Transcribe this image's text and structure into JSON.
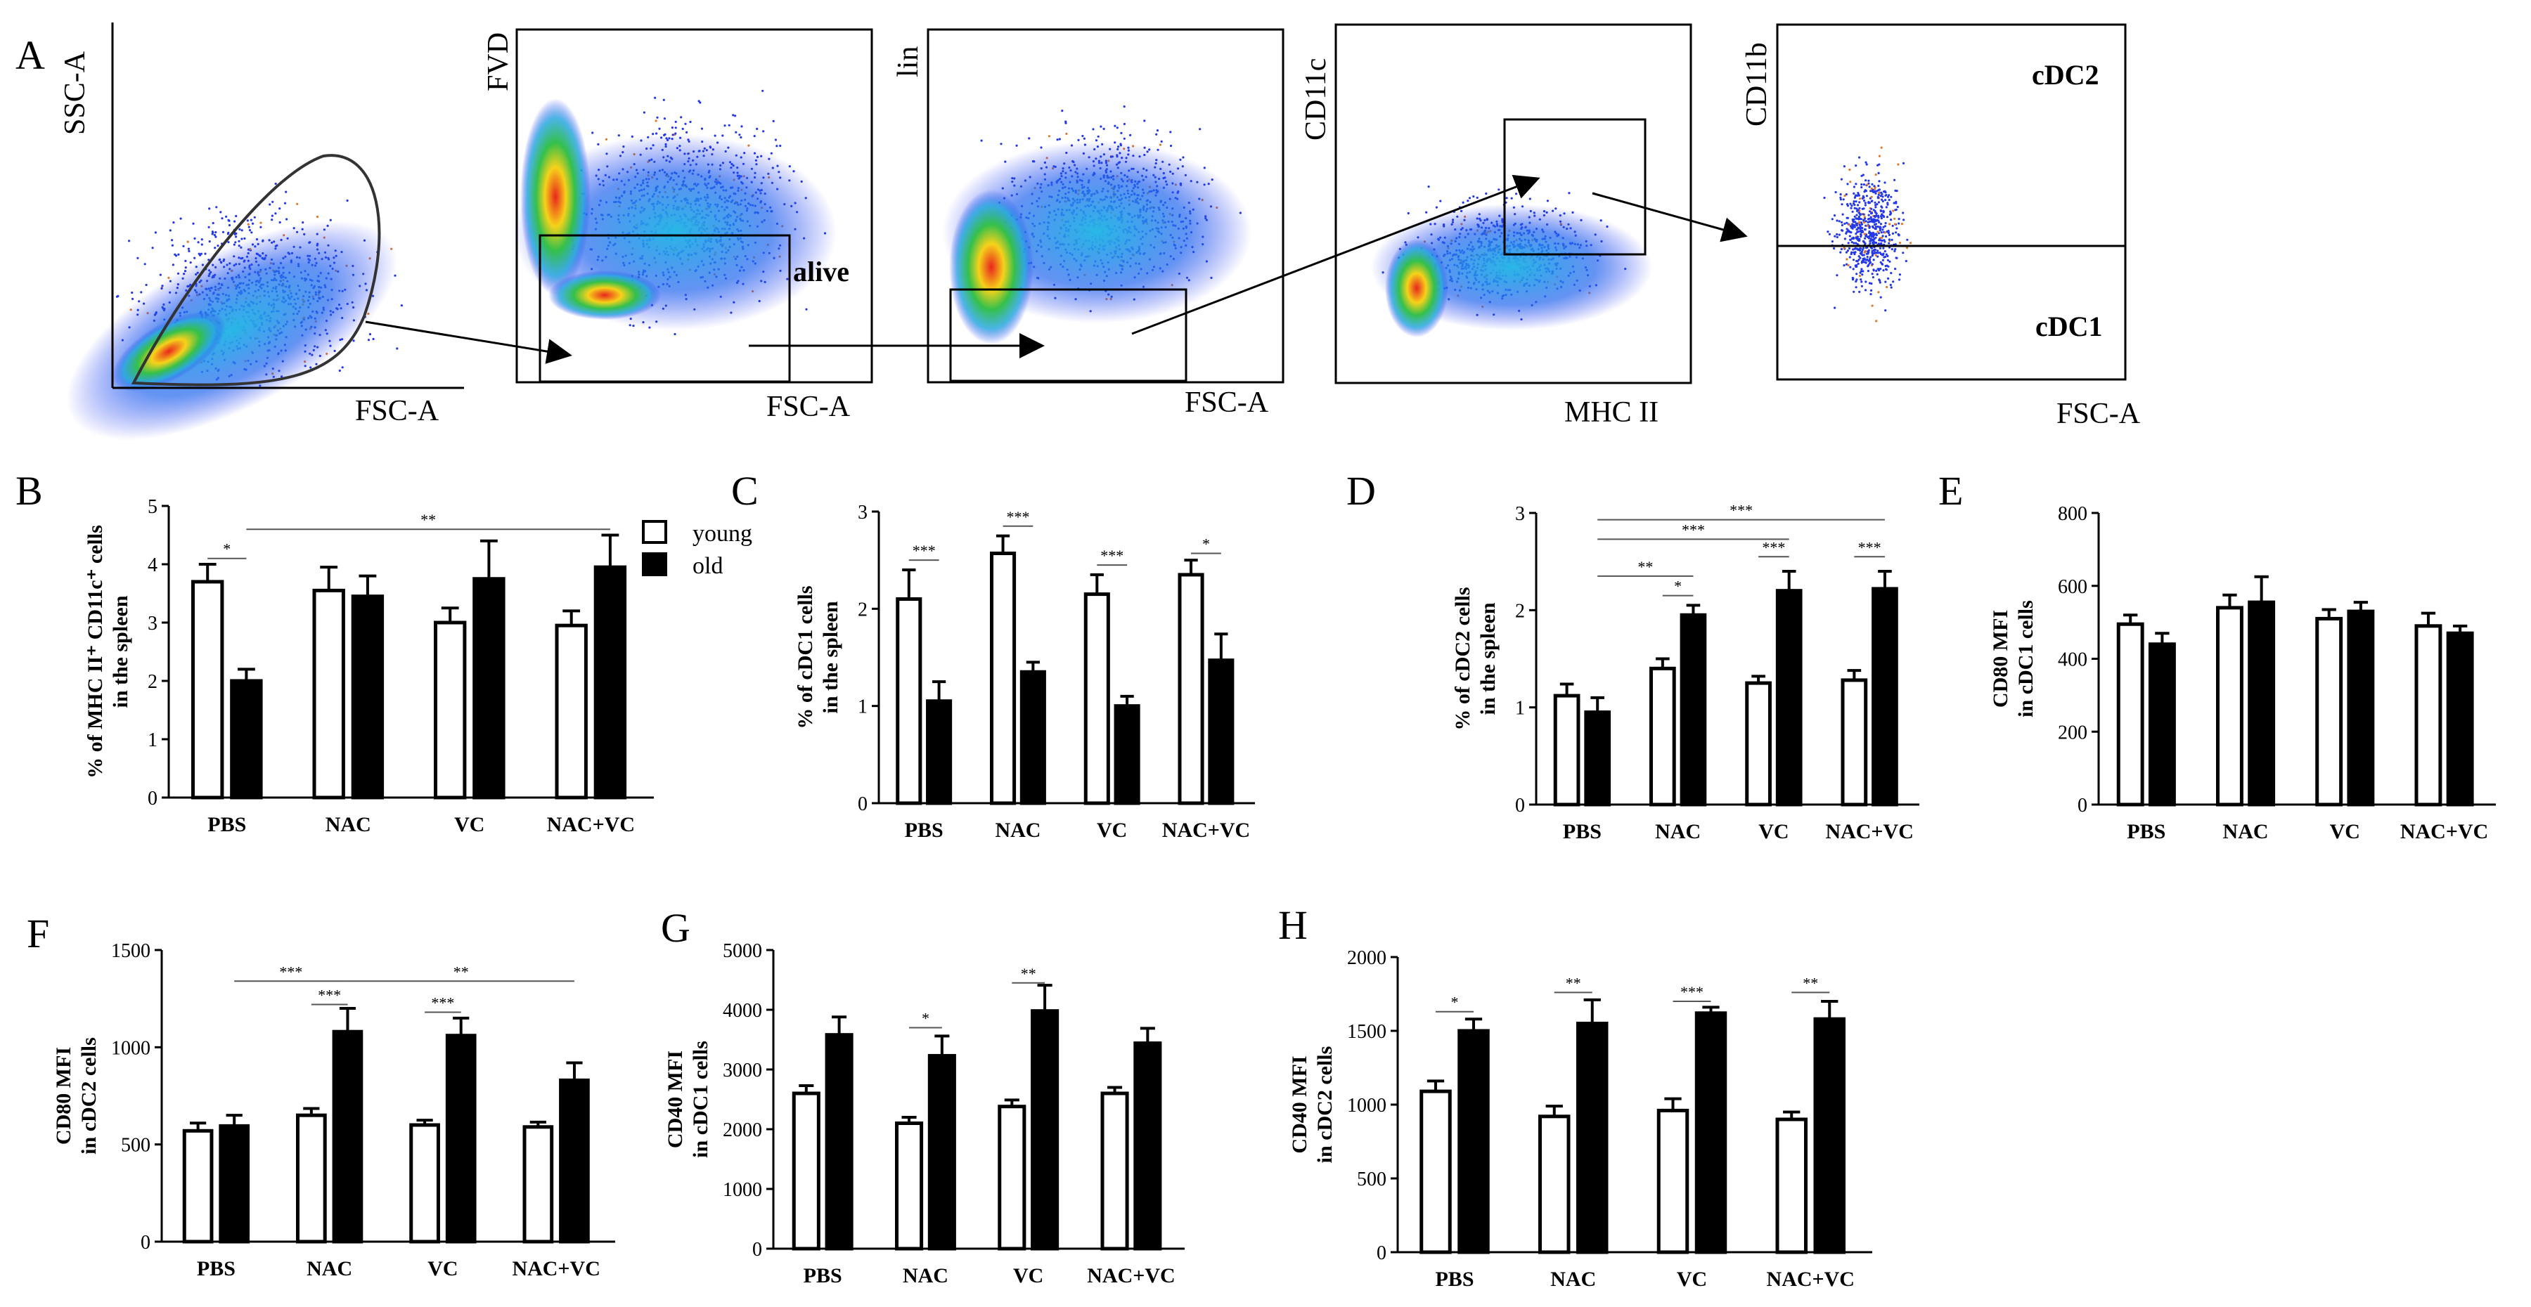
{
  "panel_A": {
    "letter": "A",
    "plots": [
      {
        "y_label": "SSC-A",
        "x_label": "FSC-A"
      },
      {
        "y_label": "FVD",
        "x_label": "FSC-A",
        "gate_label": "alive"
      },
      {
        "y_label": "lin",
        "x_label": "FSC-A"
      },
      {
        "y_label": "CD11c",
        "x_label": "MHC II"
      },
      {
        "y_label": "CD11b",
        "x_label": "FSC-A",
        "upper_label": "cDC2",
        "lower_label": "cDC1"
      }
    ]
  },
  "legend": {
    "young": "young",
    "old": "old"
  },
  "colors": {
    "young": "#ffffff",
    "old": "#000000",
    "gate": "#000000",
    "sig_line": "#555555"
  },
  "chart_data": [
    {
      "id": "B",
      "type": "bar",
      "letter": "B",
      "categories": [
        "PBS",
        "NAC",
        "VC",
        "NAC+VC"
      ],
      "series": [
        {
          "name": "young",
          "values": [
            3.7,
            3.55,
            3.0,
            2.95
          ],
          "errors": [
            0.3,
            0.4,
            0.25,
            0.25
          ]
        },
        {
          "name": "old",
          "values": [
            2.0,
            3.45,
            3.75,
            3.95
          ],
          "errors": [
            0.2,
            0.35,
            0.65,
            0.55
          ]
        }
      ],
      "ylim": [
        0,
        5
      ],
      "yticks": [
        "0",
        "1",
        "2",
        "3",
        "4",
        "5"
      ],
      "ylabel_line1": "% of MHC II⁺ CD11c⁺ cells",
      "ylabel_line2": "in the spleen",
      "significance": [
        {
          "from": "PBS:young",
          "to": "PBS:old",
          "y": 4.1,
          "label": "*"
        },
        {
          "from": "PBS:old",
          "to": "NAC+VC:old",
          "y": 4.6,
          "label": "**"
        }
      ]
    },
    {
      "id": "C",
      "type": "bar",
      "letter": "C",
      "categories": [
        "PBS",
        "NAC",
        "VC",
        "NAC+VC"
      ],
      "series": [
        {
          "name": "young",
          "values": [
            2.1,
            2.57,
            2.15,
            2.35
          ],
          "errors": [
            0.3,
            0.18,
            0.2,
            0.15
          ]
        },
        {
          "name": "old",
          "values": [
            1.05,
            1.35,
            1.0,
            1.47
          ],
          "errors": [
            0.2,
            0.1,
            0.1,
            0.27
          ]
        }
      ],
      "ylim": [
        0,
        3
      ],
      "yticks": [
        "0",
        "1",
        "2",
        "3"
      ],
      "ylabel_line1": "% of cDC1 cells",
      "ylabel_line2": "in the spleen",
      "significance": [
        {
          "from": "PBS:young",
          "to": "PBS:old",
          "y": 2.5,
          "label": "***"
        },
        {
          "from": "NAC:young",
          "to": "NAC:old",
          "y": 2.85,
          "label": "***"
        },
        {
          "from": "VC:young",
          "to": "VC:old",
          "y": 2.45,
          "label": "***"
        },
        {
          "from": "NAC+VC:young",
          "to": "NAC+VC:old",
          "y": 2.57,
          "label": "*"
        }
      ]
    },
    {
      "id": "D",
      "type": "bar",
      "letter": "D",
      "categories": [
        "PBS",
        "NAC",
        "VC",
        "NAC+VC"
      ],
      "series": [
        {
          "name": "young",
          "values": [
            1.12,
            1.4,
            1.25,
            1.28
          ],
          "errors": [
            0.12,
            0.1,
            0.07,
            0.1
          ]
        },
        {
          "name": "old",
          "values": [
            0.95,
            1.95,
            2.2,
            2.22
          ],
          "errors": [
            0.15,
            0.1,
            0.2,
            0.18
          ]
        }
      ],
      "ylim": [
        0,
        3
      ],
      "yticks": [
        "0",
        "1",
        "2",
        "3"
      ],
      "ylabel_line1": "% of cDC2 cells",
      "ylabel_line2": "in the spleen",
      "significance": [
        {
          "from": "PBS:old",
          "to": "NAC+VC:old",
          "y": 2.93,
          "label": "***"
        },
        {
          "from": "PBS:old",
          "to": "VC:old",
          "y": 2.73,
          "label": "***"
        },
        {
          "from": "PBS:old",
          "to": "NAC:old",
          "y": 2.35,
          "label": "**"
        },
        {
          "from": "NAC:young",
          "to": "NAC:old",
          "y": 2.15,
          "label": "*"
        },
        {
          "from": "VC:young",
          "to": "VC:old",
          "y": 2.55,
          "label": "***"
        },
        {
          "from": "NAC+VC:young",
          "to": "NAC+VC:old",
          "y": 2.55,
          "label": "***"
        }
      ]
    },
    {
      "id": "E",
      "type": "bar",
      "letter": "E",
      "categories": [
        "PBS",
        "NAC",
        "VC",
        "NAC+VC"
      ],
      "series": [
        {
          "name": "young",
          "values": [
            495,
            540,
            510,
            490
          ],
          "errors": [
            25,
            35,
            25,
            35
          ]
        },
        {
          "name": "old",
          "values": [
            440,
            555,
            530,
            470
          ],
          "errors": [
            30,
            70,
            25,
            20
          ]
        }
      ],
      "ylim": [
        0,
        800
      ],
      "yticks": [
        "0",
        "200",
        "400",
        "600",
        "800"
      ],
      "ylabel_line1": "CD80 MFI",
      "ylabel_line2": "in cDC1 cells",
      "significance": []
    },
    {
      "id": "F",
      "type": "bar",
      "letter": "F",
      "categories": [
        "PBS",
        "NAC",
        "VC",
        "NAC+VC"
      ],
      "series": [
        {
          "name": "young",
          "values": [
            570,
            650,
            600,
            590
          ],
          "errors": [
            40,
            35,
            25,
            25
          ]
        },
        {
          "name": "old",
          "values": [
            595,
            1080,
            1060,
            830
          ],
          "errors": [
            55,
            120,
            90,
            90
          ]
        }
      ],
      "ylim": [
        0,
        1500
      ],
      "yticks": [
        "0",
        "500",
        "1000",
        "1500"
      ],
      "ylabel_line1": "CD80 MFI",
      "ylabel_line2": "in cDC2 cells",
      "significance": [
        {
          "from": "PBS:old",
          "to": "NAC:old",
          "y": 1340,
          "label": "***"
        },
        {
          "from": "NAC:young",
          "to": "NAC:old",
          "y": 1220,
          "label": "***"
        },
        {
          "from": "NAC:old",
          "to": "NAC+VC:old",
          "y": 1340,
          "label": "**"
        },
        {
          "from": "VC:young",
          "to": "VC:old",
          "y": 1180,
          "label": "***"
        }
      ]
    },
    {
      "id": "G",
      "type": "bar",
      "letter": "G",
      "categories": [
        "PBS",
        "NAC",
        "VC",
        "NAC+VC"
      ],
      "series": [
        {
          "name": "young",
          "values": [
            2600,
            2100,
            2380,
            2600
          ],
          "errors": [
            130,
            100,
            110,
            100
          ]
        },
        {
          "name": "old",
          "values": [
            3580,
            3230,
            3980,
            3440
          ],
          "errors": [
            300,
            330,
            430,
            250
          ]
        }
      ],
      "ylim": [
        0,
        5000
      ],
      "yticks": [
        "0",
        "1000",
        "2000",
        "3000",
        "4000",
        "5000"
      ],
      "ylabel_line1": "CD40 MFI",
      "ylabel_line2": "in cDC1 cells",
      "significance": [
        {
          "from": "NAC:young",
          "to": "NAC:old",
          "y": 3700,
          "label": "*"
        },
        {
          "from": "VC:young",
          "to": "VC:old",
          "y": 4450,
          "label": "**"
        }
      ]
    },
    {
      "id": "H",
      "type": "bar",
      "letter": "H",
      "categories": [
        "PBS",
        "NAC",
        "VC",
        "NAC+VC"
      ],
      "series": [
        {
          "name": "young",
          "values": [
            1090,
            920,
            960,
            900
          ],
          "errors": [
            70,
            70,
            80,
            50
          ]
        },
        {
          "name": "old",
          "values": [
            1500,
            1550,
            1620,
            1580
          ],
          "errors": [
            80,
            160,
            40,
            120
          ]
        }
      ],
      "ylim": [
        0,
        2000
      ],
      "yticks": [
        "0",
        "500",
        "1000",
        "1500",
        "2000"
      ],
      "ylabel_line1": "CD40 MFI",
      "ylabel_line2": "in cDC2 cells",
      "significance": [
        {
          "from": "PBS:young",
          "to": "PBS:old",
          "y": 1630,
          "label": "*"
        },
        {
          "from": "NAC:young",
          "to": "NAC:old",
          "y": 1760,
          "label": "**"
        },
        {
          "from": "VC:young",
          "to": "VC:old",
          "y": 1700,
          "label": "***"
        },
        {
          "from": "NAC+VC:young",
          "to": "NAC+VC:old",
          "y": 1760,
          "label": "**"
        }
      ]
    }
  ]
}
